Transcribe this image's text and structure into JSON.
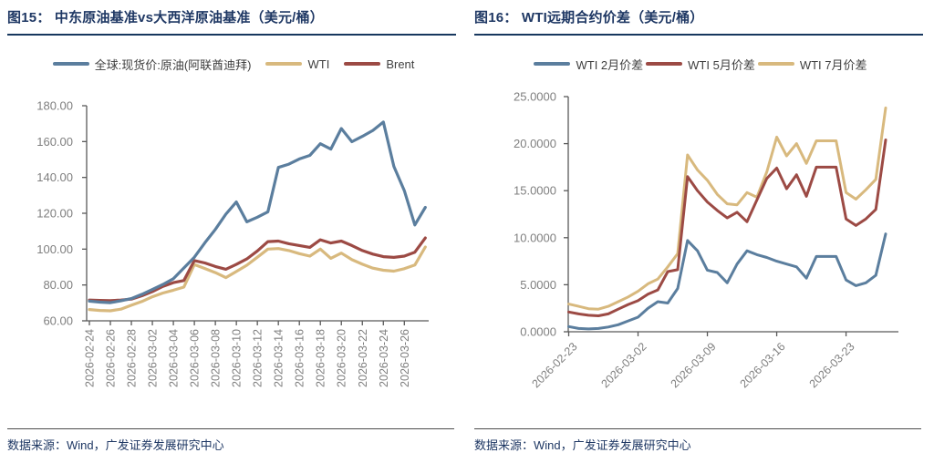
{
  "style": {
    "background": "#FFFFFF",
    "title_color": "#1F3864",
    "axis_color": "#595959",
    "tick_label_color": "#7F7F7F",
    "legend_text_color": "#3F3F3F",
    "series_blue": "#5B7E9E",
    "series_red": "#9C4A44",
    "series_tan": "#D8B97E"
  },
  "figures": [
    {
      "figure_label": "图15",
      "title": "图15： 中东原油基准vs大西洋原油基准（美元/桶）",
      "source_note": "数据来源：Wind，广发证券发展研究中心",
      "chart_data": {
        "type": "line",
        "title": "中东原油基准vs大西洋原油基准（美元/桶）",
        "grid": false,
        "legend_position": "top",
        "ylim": [
          60,
          180
        ],
        "y_tick_step": 20,
        "y_tick_labels": [
          "60.00",
          "80.00",
          "100.00",
          "120.00",
          "140.00",
          "160.00",
          "180.00"
        ],
        "x_tick_interval_days": 2,
        "x_tick_labels": [
          "2026-02-24",
          "2026-02-26",
          "2026-02-28",
          "2026-03-02",
          "2026-03-04",
          "2026-03-06",
          "2026-03-08",
          "2026-03-10",
          "2026-03-12",
          "2026-03-14",
          "2026-03-16",
          "2026-03-18",
          "2026-03-20",
          "2026-03-22",
          "2026-03-24",
          "2026-03-26"
        ],
        "series": [
          {
            "name": "全球:现货价:原油(阿联酋迪拜)",
            "color": "#5B7E9E",
            "values": [
              71.0,
              70.4,
              70.1,
              71.2,
              72.4,
              74.8,
              77.5,
              80.3,
              83.5,
              89.5,
              95.5,
              103.5,
              111.0,
              119.5,
              126.3,
              115.2,
              117.8,
              120.8,
              145.6,
              147.4,
              150.3,
              152.3,
              158.8,
              155.8,
              167.3,
              159.9,
              162.9,
              166.2,
              170.9,
              146.2,
              132.6,
              113.5,
              123.3
            ]
          },
          {
            "name": "WTI",
            "color": "#D8B97E",
            "values": [
              66.3,
              65.8,
              65.6,
              66.5,
              68.7,
              70.8,
              73.4,
              75.5,
              77.1,
              78.8,
              91.4,
              89.2,
              86.9,
              84.1,
              87.5,
              91.0,
              95.5,
              100.0,
              100.3,
              99.2,
              97.5,
              96.1,
              100.0,
              94.9,
              97.8,
              94.1,
              91.6,
              89.4,
              88.2,
              87.7,
              89.1,
              91.1,
              101.2
            ]
          },
          {
            "name": "Brent",
            "color": "#9C4A44",
            "values": [
              71.6,
              71.4,
              71.3,
              71.6,
              72.1,
              74.0,
              76.3,
              79.2,
              81.3,
              82.5,
              93.6,
              92.3,
              90.3,
              88.8,
              91.5,
              94.5,
              99.0,
              104.2,
              104.5,
              103.0,
              102.0,
              101.0,
              105.2,
              103.4,
              104.5,
              102.0,
              99.2,
              97.2,
              95.8,
              95.4,
              96.1,
              98.3,
              106.2
            ]
          }
        ]
      }
    },
    {
      "figure_label": "图16",
      "title": "图16： WTI远期合约价差（美元/桶）",
      "source_note": "数据来源：Wind，广发证券发展研究中心",
      "chart_data": {
        "type": "line",
        "title": "WTI远期合约价差（美元/桶）",
        "grid": false,
        "legend_position": "top",
        "ylim": [
          0,
          25
        ],
        "y_tick_step": 5,
        "y_tick_labels": [
          "0.0000",
          "5.0000",
          "10.0000",
          "15.0000",
          "20.0000",
          "25.0000"
        ],
        "x_tick_interval_days": 7,
        "x_tick_labels": [
          "2026-02-23",
          "2026-03-02",
          "2026-03-09",
          "2026-03-16",
          "2026-03-23"
        ],
        "series": [
          {
            "name": "WTI 2月价差",
            "color": "#5B7E9E",
            "values": [
              0.55,
              0.35,
              0.3,
              0.35,
              0.5,
              0.75,
              1.15,
              1.55,
              2.5,
              3.2,
              3.05,
              4.6,
              9.7,
              8.6,
              6.55,
              6.3,
              5.2,
              7.2,
              8.6,
              8.2,
              7.9,
              7.5,
              7.2,
              6.9,
              5.7,
              8.0,
              8.0,
              8.0,
              5.5,
              4.9,
              5.2,
              6.0,
              10.4
            ]
          },
          {
            "name": "WTI 5月价差",
            "color": "#9C4A44",
            "values": [
              2.1,
              1.9,
              1.75,
              1.7,
              1.9,
              2.4,
              2.9,
              3.3,
              4.0,
              4.45,
              6.4,
              6.6,
              16.5,
              15.0,
              13.8,
              12.9,
              12.1,
              12.7,
              11.7,
              14.0,
              16.3,
              17.4,
              15.2,
              16.7,
              14.4,
              17.5,
              17.5,
              17.5,
              12.0,
              11.3,
              12.0,
              13.0,
              20.4
            ]
          },
          {
            "name": "WTI 7月价差",
            "color": "#D8B97E",
            "values": [
              2.95,
              2.7,
              2.45,
              2.4,
              2.7,
              3.2,
              3.7,
              4.3,
              5.1,
              5.6,
              6.9,
              8.3,
              18.8,
              17.2,
              16.1,
              14.6,
              13.6,
              13.5,
              14.8,
              14.3,
              17.0,
              20.7,
              18.7,
              20.0,
              17.9,
              20.3,
              20.3,
              20.3,
              14.8,
              14.1,
              15.1,
              16.2,
              23.8
            ]
          }
        ]
      }
    }
  ]
}
